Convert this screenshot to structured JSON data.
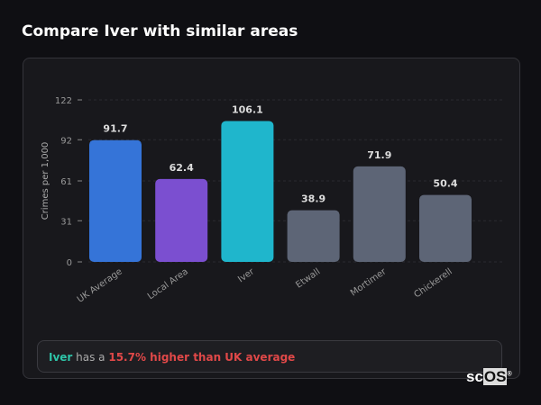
{
  "title": "Compare Iver with similar areas",
  "chart_data": {
    "type": "bar",
    "ylabel": "Crimes per 1,000",
    "ylim": [
      0,
      122
    ],
    "yticks": [
      0,
      31,
      61,
      92,
      122
    ],
    "categories": [
      "UK Average",
      "Local Area",
      "Iver",
      "Etwall",
      "Mortimer",
      "Chickerell"
    ],
    "values": [
      91.7,
      62.4,
      106.1,
      38.9,
      71.9,
      50.4
    ],
    "labels": [
      "91.7",
      "62.4",
      "106.1",
      "38.9",
      "71.9",
      "50.4"
    ],
    "colors": [
      "#3574d8",
      "#7b4fd0",
      "#1fb6cc",
      "#5d6576",
      "#5d6576",
      "#5d6576"
    ]
  },
  "summary": {
    "place": "Iver",
    "middle": " has a ",
    "difference": "15.7% higher than UK average"
  },
  "logo": {
    "sc": "sc",
    "os": "OS",
    "reg": "®"
  }
}
